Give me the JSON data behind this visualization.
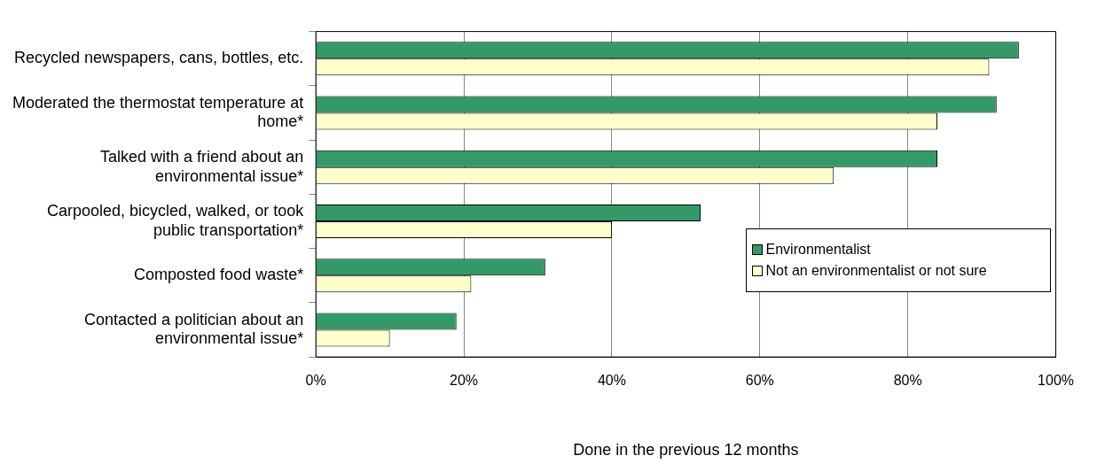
{
  "chart_data": {
    "type": "bar",
    "orientation": "horizontal",
    "xlabel": "Done in the previous 12 months",
    "categories": [
      "Recycled newspapers, cans, bottles, etc.",
      "Moderated the thermostat temperature at home*",
      "Talked with a friend about an environmental issue*",
      "Carpooled, bicycled, walked, or took public transportation*",
      "Composted food waste*",
      "Contacted a politician about an environmental issue*"
    ],
    "series": [
      {
        "name": "Environmentalist",
        "color": "#339966",
        "values": [
          95,
          92,
          84,
          52,
          31,
          19
        ]
      },
      {
        "name": "Not an environmentalist or not sure",
        "color": "#ffffcc",
        "values": [
          91,
          84,
          70,
          40,
          21,
          10
        ]
      }
    ],
    "xlim": [
      0,
      100
    ],
    "xticks": [
      {
        "value": 0,
        "label": "0%"
      },
      {
        "value": 20,
        "label": "20%"
      },
      {
        "value": 40,
        "label": "40%"
      },
      {
        "value": 60,
        "label": "60%"
      },
      {
        "value": 80,
        "label": "80%"
      },
      {
        "value": 100,
        "label": "100%"
      }
    ],
    "grid": "x",
    "legend": "bottom right"
  }
}
